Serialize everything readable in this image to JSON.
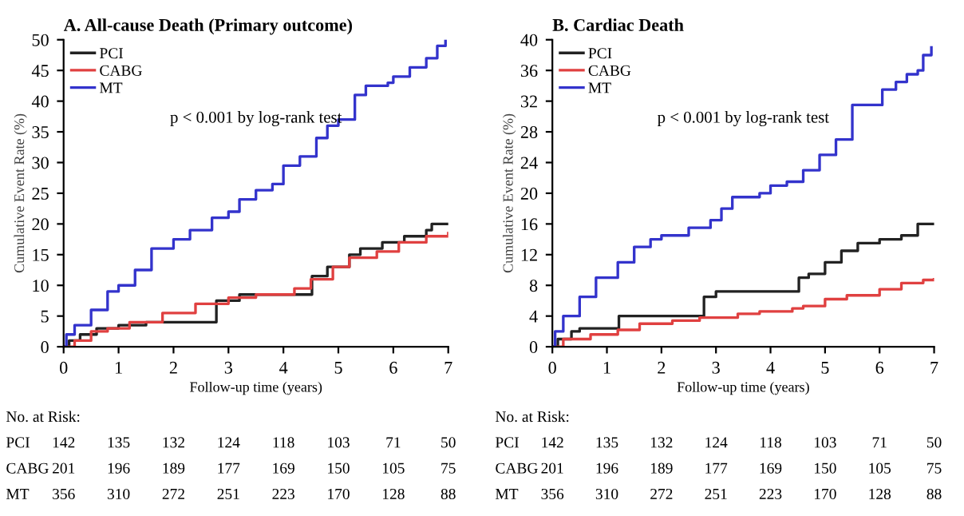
{
  "chart_data": [
    {
      "type": "step",
      "title": "A. All-cause Death (Primary outcome)",
      "xlabel": "Follow-up time (years)",
      "ylabel": "Cumulative Event Rate (%)",
      "xlim": [
        0,
        7
      ],
      "ylim": [
        0,
        50
      ],
      "xticks": [
        0,
        1,
        2,
        3,
        4,
        5,
        6,
        7
      ],
      "yticks": [
        0,
        5,
        10,
        15,
        20,
        25,
        30,
        35,
        40,
        45,
        50
      ],
      "grid": false,
      "legend": "top left",
      "marker": "none",
      "line_style": "solid",
      "annotations": [
        "p < 0.001 by log-rank test",
        "No. at Risk:",
        "PCI 142 135 132 124 118 103 71 50",
        "CABG 201 196 189 177 169 150 105 75",
        "MT 356 310 272 251 223 170 128 88"
      ],
      "series": [
        {
          "name": "PCI",
          "color": "#222222",
          "x": [
            0,
            0.1,
            0.3,
            0.6,
            1,
            1.5,
            2.75,
            2.78,
            3.2,
            4.5,
            4.52,
            4.8,
            5.2,
            5.4,
            5.8,
            6.2,
            6.6,
            6.7,
            7
          ],
          "values": [
            0,
            1,
            2,
            3,
            3.5,
            4,
            4,
            7.5,
            8.5,
            8.5,
            11.5,
            13,
            15,
            16,
            17,
            18,
            19,
            20,
            20
          ]
        },
        {
          "name": "CABG",
          "color": "#e04040",
          "x": [
            0,
            0.2,
            0.5,
            0.8,
            1.2,
            1.8,
            2.4,
            3,
            3.5,
            4.2,
            4.5,
            4.9,
            5.2,
            5.7,
            6.1,
            6.6,
            7
          ],
          "values": [
            0,
            1,
            2.5,
            3,
            4,
            5.5,
            7,
            8,
            8.5,
            9.5,
            11,
            13,
            14.5,
            15.5,
            17,
            18,
            18.5
          ]
        },
        {
          "name": "MT",
          "color": "#3333cc",
          "x": [
            0,
            0.05,
            0.2,
            0.5,
            0.8,
            1,
            1.3,
            1.6,
            2,
            2.3,
            2.7,
            3,
            3.2,
            3.5,
            3.8,
            4,
            4.3,
            4.6,
            4.8,
            5,
            5.3,
            5.5,
            5.9,
            6,
            6.3,
            6.6,
            6.8,
            6.95
          ],
          "values": [
            0,
            2,
            3.5,
            6,
            9,
            10,
            12.5,
            16,
            17.5,
            19,
            21,
            22,
            24,
            25.5,
            26.5,
            29.5,
            31,
            34,
            36,
            37,
            41,
            42.5,
            43,
            44,
            45.5,
            47,
            49,
            50
          ]
        }
      ]
    },
    {
      "type": "step",
      "title": "B. Cardiac Death",
      "xlabel": "Follow-up time (years)",
      "ylabel": "Cumulative Event Rate (%)",
      "xlim": [
        0,
        7
      ],
      "ylim": [
        0,
        40
      ],
      "xticks": [
        0,
        1,
        2,
        3,
        4,
        5,
        6,
        7
      ],
      "yticks": [
        0,
        4,
        8,
        12,
        16,
        20,
        24,
        28,
        32,
        36,
        40
      ],
      "grid": false,
      "legend": "top left",
      "marker": "none",
      "line_style": "solid",
      "annotations": [
        "p < 0.001 by log-rank test",
        "No. at Risk:",
        "PCI 142 135 132 124 118 103 71 50",
        "CABG 201 196 189 177 169 150 105 75",
        "MT 356 310 272 251 223 170 128 88"
      ],
      "series": [
        {
          "name": "PCI",
          "color": "#222222",
          "x": [
            0,
            0.1,
            0.35,
            0.5,
            1.2,
            1.22,
            2.75,
            2.78,
            3,
            4.5,
            4.52,
            4.7,
            5,
            5.3,
            5.6,
            6,
            6.4,
            6.7,
            7
          ],
          "values": [
            0,
            1,
            2,
            2.4,
            2.4,
            4,
            4,
            6.5,
            7.2,
            7.2,
            9,
            9.5,
            11,
            12.5,
            13.5,
            14,
            14.5,
            16,
            16
          ]
        },
        {
          "name": "CABG",
          "color": "#e04040",
          "x": [
            0,
            0.2,
            0.7,
            1.2,
            1.6,
            2.2,
            2.7,
            3.4,
            3.8,
            4.4,
            4.6,
            5,
            5.4,
            6,
            6.4,
            6.8,
            7
          ],
          "values": [
            0,
            1,
            1.6,
            2.2,
            3,
            3.4,
            3.8,
            4.3,
            4.6,
            5,
            5.3,
            6.2,
            6.7,
            7.5,
            8.3,
            8.7,
            8.8
          ]
        },
        {
          "name": "MT",
          "color": "#3333cc",
          "x": [
            0,
            0.05,
            0.2,
            0.5,
            0.8,
            1.2,
            1.5,
            1.8,
            2,
            2.5,
            2.9,
            3.1,
            3.3,
            3.8,
            4,
            4.3,
            4.6,
            4.9,
            5.2,
            5.5,
            6,
            6.05,
            6.3,
            6.5,
            6.7,
            6.8,
            6.95
          ],
          "values": [
            0,
            2,
            4,
            6.5,
            9,
            11,
            13,
            14,
            14.5,
            15.5,
            16.5,
            18,
            19.5,
            20,
            21,
            21.5,
            23,
            25,
            27,
            31.5,
            31.5,
            33.5,
            34.5,
            35.5,
            36,
            38,
            39
          ]
        }
      ]
    }
  ]
}
